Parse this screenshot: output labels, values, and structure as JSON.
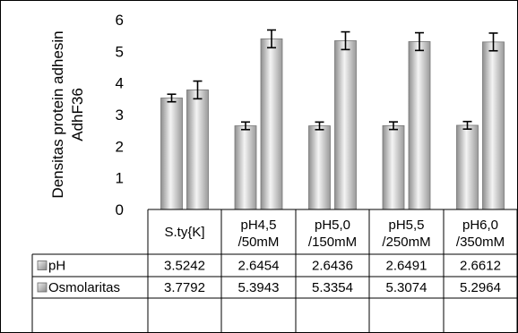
{
  "chart_data": {
    "type": "bar",
    "ylabel_lines": [
      "Densitas protein adhesin",
      "AdhF36"
    ],
    "ylim": [
      0,
      6
    ],
    "yticks": [
      0,
      1,
      2,
      3,
      4,
      5,
      6
    ],
    "categories": [
      [
        "S.ty{K]"
      ],
      [
        "pH4,5",
        "/50mM"
      ],
      [
        "pH5,0",
        "/150mM"
      ],
      [
        "pH5,5",
        "/250mM"
      ],
      [
        "pH6,0",
        "/350mM"
      ]
    ],
    "series": [
      {
        "name": "pH",
        "values": [
          3.5242,
          2.6454,
          2.6436,
          2.6491,
          2.6612
        ],
        "labels": [
          "3.5242",
          "2.6454",
          "2.6436",
          "2.6491",
          "2.6612"
        ],
        "error": 0.12,
        "color": "#c8c8c8"
      },
      {
        "name": "Osmolaritas",
        "values": [
          3.7792,
          5.3943,
          5.3354,
          5.3074,
          5.2964
        ],
        "labels": [
          "3.7792",
          "5.3943",
          "5.3354",
          "5.3074",
          "5.2964"
        ],
        "error": 0.28,
        "color": "#d2d2d2"
      }
    ],
    "grid": false,
    "legend": "data-table"
  }
}
